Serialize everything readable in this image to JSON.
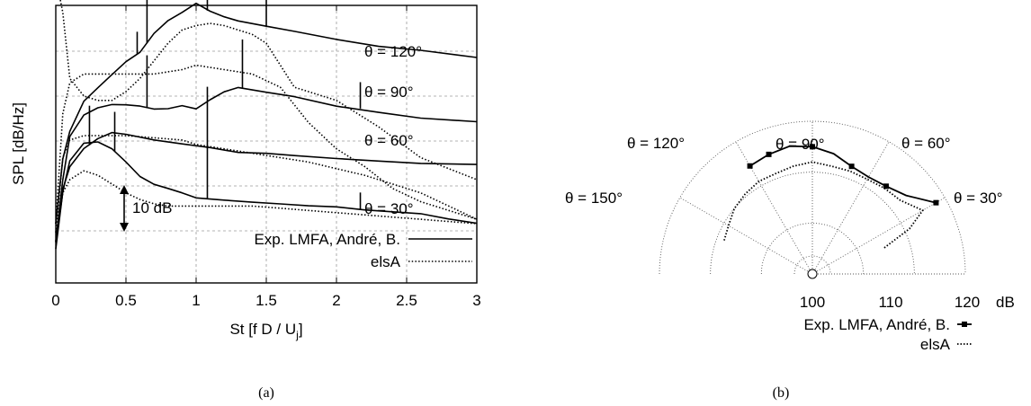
{
  "chart_data": [
    {
      "panel": "(a)",
      "type": "line",
      "xlabel": "St [f D / U",
      "xlabel_sub": "j",
      "xlabel_end": "]",
      "ylabel": "SPL [dB/Hz]",
      "xlim": [
        0,
        3
      ],
      "xticks": [
        "0",
        "0.5",
        "1",
        "1.5",
        "2",
        "2.5",
        "3"
      ],
      "grid": true,
      "legend": {
        "placement": "bottom-right",
        "entries": [
          "Exp. LMFA, André, B.",
          "elsA"
        ]
      },
      "scale_bar": "10 dB",
      "curve_labels": [
        "θ = 120°",
        "θ = 90°",
        "θ = 60°",
        "θ = 30°"
      ],
      "series": [
        {
          "name": "Exp. LMFA, André, B.",
          "angle": "θ = 120°",
          "style": "solid",
          "x": [
            0.0,
            0.05,
            0.1,
            0.2,
            0.3,
            0.4,
            0.5,
            0.6,
            0.7,
            0.8,
            0.9,
            1.0,
            1.1,
            1.2,
            1.3,
            1.5,
            1.7,
            2.0,
            2.3,
            2.6,
            3.0
          ],
          "y": [
            -10,
            5,
            11,
            18,
            21,
            24,
            27,
            29,
            33,
            36,
            38,
            40,
            38,
            37,
            36,
            35,
            34,
            32,
            30.5,
            29.5,
            28
          ]
        },
        {
          "name": "elsA",
          "angle": "θ = 120°",
          "style": "dotted",
          "x": [
            0.0,
            0.05,
            0.1,
            0.2,
            0.3,
            0.4,
            0.5,
            0.6,
            0.7,
            0.8,
            0.9,
            1.0,
            1.1,
            1.2,
            1.3,
            1.4,
            1.5,
            1.6,
            1.7,
            2.0,
            2.3,
            2.6,
            3.0
          ],
          "y": [
            46,
            38,
            23,
            19,
            18,
            18,
            20,
            23,
            27,
            31,
            34,
            35,
            35.5,
            35,
            34,
            33,
            31,
            26,
            21,
            18,
            12,
            5,
            0
          ]
        },
        {
          "name": "Exp. LMFA, André, B.",
          "angle": "θ = 90°",
          "style": "solid",
          "x": [
            0.0,
            0.05,
            0.1,
            0.2,
            0.3,
            0.4,
            0.5,
            0.6,
            0.7,
            0.8,
            0.9,
            1.0,
            1.1,
            1.2,
            1.3,
            1.5,
            1.7,
            2.0,
            2.3,
            2.6,
            3.0
          ],
          "y": [
            -14,
            0,
            10,
            15,
            16.5,
            17,
            17,
            16.5,
            16,
            16,
            16.5,
            16,
            18,
            20,
            21,
            20,
            19,
            17,
            15.5,
            14,
            13
          ]
        },
        {
          "name": "elsA",
          "angle": "θ = 90°",
          "style": "dotted",
          "x": [
            0.0,
            0.05,
            0.1,
            0.2,
            0.3,
            0.5,
            0.7,
            0.9,
            1.0,
            1.2,
            1.4,
            1.6,
            1.8,
            2.0,
            2.2,
            2.4,
            2.6,
            2.8,
            3.0
          ],
          "y": [
            -10,
            15,
            22,
            24,
            24,
            24,
            24,
            25,
            26,
            25,
            24,
            21,
            13,
            7,
            3,
            -2,
            -5,
            -7,
            -9
          ]
        },
        {
          "name": "Exp. LMFA, André, B.",
          "angle": "θ = 60°",
          "style": "solid",
          "x": [
            0.0,
            0.05,
            0.1,
            0.2,
            0.3,
            0.4,
            0.5,
            0.7,
            0.9,
            1.1,
            1.3,
            1.5,
            1.7,
            2.0,
            2.3,
            2.6,
            3.0
          ],
          "y": [
            -14,
            -2,
            3,
            7,
            9,
            10.5,
            10,
            9,
            8,
            7,
            6.5,
            6,
            5.5,
            5,
            4.5,
            4,
            3.5
          ]
        },
        {
          "name": "elsA",
          "angle": "θ = 60°",
          "style": "dotted",
          "x": [
            0.0,
            0.05,
            0.1,
            0.2,
            0.3,
            0.5,
            0.7,
            0.9,
            1.0,
            1.2,
            1.4,
            1.6,
            1.8,
            2.0,
            2.2,
            2.4,
            2.6,
            2.8,
            3.0
          ],
          "y": [
            -12,
            5,
            9,
            10,
            10,
            10,
            9.5,
            9,
            8,
            7,
            6,
            5,
            4,
            2.5,
            1,
            -1,
            -3,
            -6,
            -9
          ]
        },
        {
          "name": "Exp. LMFA, André, B.",
          "angle": "θ = 30°",
          "style": "solid",
          "x": [
            0.0,
            0.05,
            0.1,
            0.2,
            0.3,
            0.4,
            0.5,
            0.6,
            0.7,
            0.8,
            0.9,
            1.0,
            1.2,
            1.4,
            1.6,
            1.8,
            2.0,
            2.2,
            2.4,
            2.6,
            2.8,
            3.0
          ],
          "y": [
            -16,
            -3,
            4,
            8,
            8.5,
            7,
            4,
            1,
            -1,
            -2,
            -3,
            -4,
            -4.5,
            -5,
            -5.5,
            -6,
            -6.5,
            -7,
            -7.5,
            -8,
            -9,
            -10
          ]
        },
        {
          "name": "elsA",
          "angle": "θ = 30°",
          "style": "dotted",
          "x": [
            0.0,
            0.05,
            0.1,
            0.2,
            0.3,
            0.4,
            0.5,
            0.6,
            0.7,
            0.8,
            1.0,
            1.2,
            1.4,
            1.6,
            1.8,
            2.0,
            2.2,
            2.4,
            2.6,
            2.8,
            3.0
          ],
          "y": [
            -14,
            -3,
            0,
            2,
            1,
            -1,
            -3,
            -4.5,
            -5.5,
            -6,
            -6,
            -6,
            -6,
            -6.5,
            -7,
            -7.5,
            -8,
            -8.5,
            -9,
            -9.5,
            -10
          ]
        }
      ],
      "peaks": [
        {
          "x": 0.24,
          "curve": "θ = 60°",
          "height": 9
        },
        {
          "x": 0.42,
          "curve": "θ = 30°",
          "height": 9
        },
        {
          "x": 0.58,
          "curve": "θ = 120°",
          "height": 5
        },
        {
          "x": 0.65,
          "curve": "θ = 120°",
          "height": 20
        },
        {
          "x": 0.65,
          "curve": "θ = 90°",
          "height": 12
        },
        {
          "x": 1.08,
          "curve": "θ = 120°",
          "height": 11
        },
        {
          "x": 1.08,
          "curve": "θ = 60°",
          "height": 14
        },
        {
          "x": 1.08,
          "curve": "θ = 30°",
          "height": 12
        },
        {
          "x": 1.33,
          "curve": "θ = 90°",
          "height": 11
        },
        {
          "x": 1.5,
          "curve": "θ = 120°",
          "height": 8
        },
        {
          "x": 2.17,
          "curve": "θ = 90°",
          "height": 6
        },
        {
          "x": 2.17,
          "curve": "θ = 30°",
          "height": 4
        }
      ]
    },
    {
      "panel": "(b)",
      "type": "polar",
      "r_unit": "dB",
      "r_ticks": [
        "100",
        "110",
        "120"
      ],
      "r_range": [
        90,
        120
      ],
      "angle_labels": [
        "θ = 150°",
        "θ = 120°",
        "θ = 90°",
        "θ = 60°",
        "θ = 30°"
      ],
      "grid": true,
      "legend": {
        "placement": "bottom-right",
        "entries": [
          "Exp. LMFA, André, B.",
          "elsA"
        ]
      },
      "series": [
        {
          "name": "Exp. LMFA, André, B.",
          "style": "solid-markers",
          "angle_deg": [
            30,
            40,
            50,
            60,
            70,
            80,
            90,
            100,
            110,
            120
          ],
          "spl_db": [
            118,
            114,
            112.5,
            112,
            112.5,
            114,
            115,
            115.5,
            115,
            114.5
          ]
        },
        {
          "name": "elsA",
          "style": "dotted",
          "angle_deg": [
            20,
            25,
            30,
            40,
            50,
            60,
            70,
            80,
            90,
            100,
            110,
            120,
            130,
            140,
            150,
            160
          ],
          "spl_db": [
            105,
            111,
            115,
            112.5,
            112,
            111.5,
            111.5,
            111.5,
            112,
            111.5,
            111,
            111,
            110.5,
            110,
            109,
            108.5
          ]
        }
      ]
    }
  ]
}
